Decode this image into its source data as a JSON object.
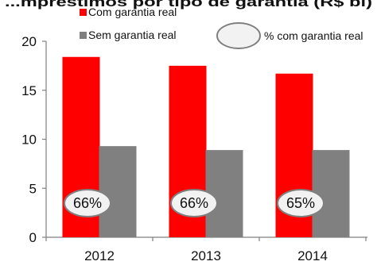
{
  "chart_data": {
    "type": "bar",
    "title": "...mpréstimos por tipo de garantia (R$ bi)",
    "categories": [
      "2012",
      "2013",
      "2014"
    ],
    "series": [
      {
        "name": "Com garantia real",
        "values": [
          18.4,
          17.5,
          16.7
        ],
        "color": "#FF0000"
      },
      {
        "name": "Sem garantia real",
        "values": [
          9.3,
          8.9,
          8.9
        ],
        "color": "#808080"
      }
    ],
    "share_series": {
      "name": "% com garantia real",
      "values": [
        "66%",
        "66%",
        "65%"
      ],
      "marker": "ellipse",
      "fill": "#F2F2F2",
      "stroke": "#808080"
    },
    "ylim": [
      0,
      20
    ],
    "yticks": [
      0,
      5,
      10,
      15,
      20
    ],
    "xlabel": "",
    "ylabel": "",
    "grid": false,
    "legend_position": "top"
  }
}
